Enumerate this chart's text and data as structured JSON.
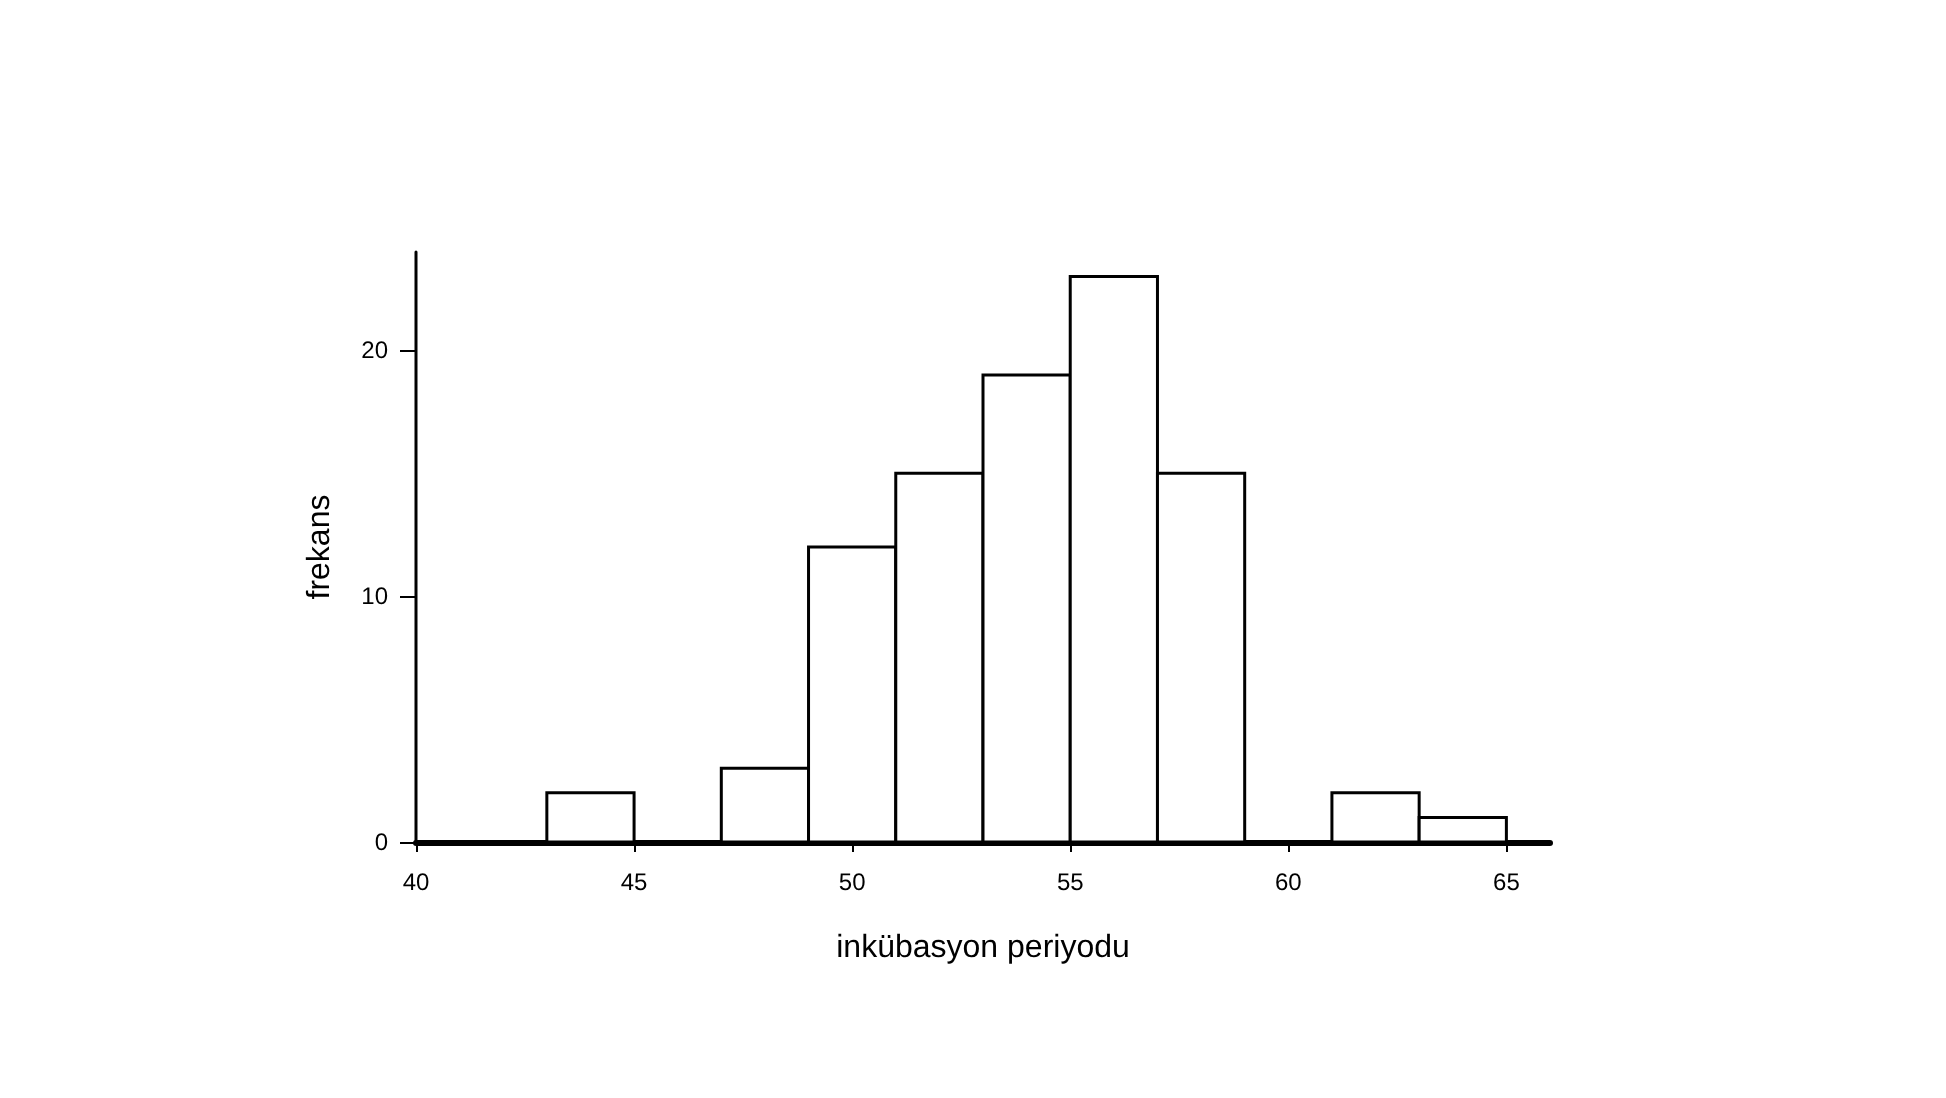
{
  "chart_data": {
    "type": "histogram",
    "xlabel": "inkübasyon periyodu",
    "ylabel": "frekans",
    "bins": [
      41,
      43,
      45,
      47,
      49,
      51,
      53,
      55,
      57,
      59,
      61,
      63,
      65
    ],
    "values": [
      0,
      2,
      0,
      3,
      12,
      15,
      19,
      23,
      15,
      0,
      2,
      1
    ],
    "xlim": [
      40,
      66
    ],
    "xticks": [
      40,
      45,
      50,
      55,
      60,
      65
    ],
    "ylim": [
      0,
      24
    ],
    "yticks": [
      0,
      10,
      20
    ],
    "grid": false
  }
}
